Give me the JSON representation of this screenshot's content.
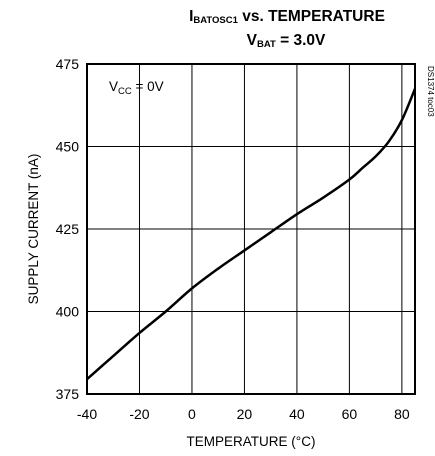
{
  "chart_data": {
    "type": "line",
    "title_main": "I",
    "title_sub": "BATOSC1",
    "title_rest": " vs. TEMPERATURE",
    "subtitle_main": "V",
    "subtitle_sub": "BAT",
    "subtitle_rest": " = 3.0V",
    "xlabel": "TEMPERATURE (°C)",
    "ylabel": "SUPPLY CURRENT (nA)",
    "xlim": [
      -40,
      85
    ],
    "ylim": [
      375,
      475
    ],
    "x_ticks": [
      "-40",
      "-20",
      "0",
      "20",
      "40",
      "60",
      "80"
    ],
    "y_ticks": [
      "375",
      "400",
      "425",
      "450",
      "475"
    ],
    "x_grid": [
      -40,
      -20,
      0,
      20,
      40,
      60,
      80
    ],
    "y_grid": [
      375,
      400,
      425,
      450,
      475
    ],
    "grid": true,
    "annotation": {
      "main": "V",
      "sub": "CC",
      "rest": " = 0V"
    },
    "watermark": "DS1374 toc03",
    "series": [
      {
        "x": [
          -40,
          -30,
          -20,
          -10,
          0,
          10,
          20,
          30,
          40,
          50,
          60,
          65,
          70,
          75,
          80,
          85
        ],
        "y": [
          379.5,
          386.5,
          393.5,
          400,
          407,
          413,
          418.5,
          424,
          429.5,
          434.5,
          440,
          443.5,
          447,
          451.5,
          458,
          467.5
        ]
      }
    ]
  }
}
